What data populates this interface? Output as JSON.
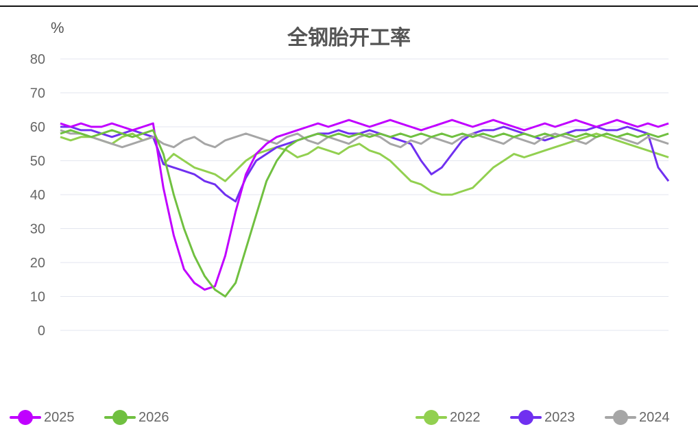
{
  "header": {
    "title": "全钢胎开工率",
    "unit": "%"
  },
  "chart_data": {
    "type": "line",
    "title": "全钢胎开工率",
    "ylabel": "%",
    "ylim": [
      0,
      80
    ],
    "y_ticks": [
      "0",
      "10",
      "20",
      "30",
      "40",
      "50",
      "60",
      "70",
      "80"
    ],
    "grid": true,
    "legend_position": "bottom",
    "x_points": 60,
    "series": [
      {
        "name": "2022",
        "color": "#92d050",
        "values": [
          57,
          56,
          57,
          57,
          56,
          55,
          57,
          58,
          56,
          57,
          49,
          52,
          50,
          48,
          47,
          46,
          44,
          47,
          50,
          52,
          53,
          54,
          53,
          51,
          52,
          54,
          53,
          52,
          54,
          55,
          53,
          52,
          50,
          47,
          44,
          43,
          41,
          40,
          40,
          41,
          42,
          45,
          48,
          50,
          52,
          51,
          52,
          53,
          54,
          55,
          56,
          57,
          58,
          57,
          56,
          55,
          54,
          53,
          52,
          51
        ]
      },
      {
        "name": "2023",
        "color": "#7030f0",
        "values": [
          60,
          60,
          59,
          59,
          58,
          57,
          58,
          59,
          58,
          57,
          49,
          48,
          47,
          46,
          44,
          43,
          40,
          38,
          45,
          50,
          52,
          54,
          55,
          56,
          57,
          58,
          58,
          59,
          58,
          58,
          59,
          58,
          57,
          56,
          55,
          50,
          46,
          48,
          52,
          56,
          58,
          59,
          59,
          60,
          59,
          58,
          57,
          56,
          57,
          58,
          59,
          59,
          60,
          59,
          59,
          60,
          59,
          58,
          48,
          44
        ]
      },
      {
        "name": "2024",
        "color": "#a6a6a6",
        "values": [
          59,
          58,
          58,
          57,
          56,
          55,
          54,
          55,
          56,
          57,
          55,
          54,
          56,
          57,
          55,
          54,
          56,
          57,
          58,
          57,
          56,
          55,
          57,
          58,
          56,
          55,
          57,
          56,
          55,
          57,
          58,
          57,
          55,
          54,
          56,
          55,
          57,
          56,
          55,
          57,
          58,
          57,
          56,
          55,
          57,
          56,
          55,
          57,
          58,
          57,
          56,
          55,
          57,
          58,
          57,
          56,
          55,
          57,
          56,
          55
        ]
      },
      {
        "name": "2025",
        "color": "#c000ff",
        "values": [
          61,
          60,
          61,
          60,
          60,
          61,
          60,
          59,
          60,
          61,
          42,
          28,
          18,
          14,
          12,
          13,
          22,
          35,
          46,
          52,
          55,
          57,
          58,
          59,
          60,
          61,
          60,
          61,
          62,
          61,
          60,
          61,
          62,
          61,
          60,
          59,
          60,
          61,
          62,
          61,
          60,
          61,
          62,
          61,
          60,
          59,
          60,
          61,
          60,
          61,
          62,
          61,
          60,
          61,
          62,
          61,
          60,
          61,
          60,
          61
        ]
      },
      {
        "name": "2026",
        "color": "#70c040",
        "values": [
          58,
          59,
          58,
          57,
          58,
          59,
          58,
          57,
          58,
          59,
          52,
          40,
          30,
          22,
          16,
          12,
          10,
          14,
          24,
          34,
          44,
          50,
          54,
          56,
          57,
          58,
          57,
          58,
          57,
          58,
          57,
          58,
          57,
          58,
          57,
          58,
          57,
          58,
          57,
          58,
          57,
          58,
          57,
          58,
          57,
          58,
          57,
          58,
          57,
          58,
          57,
          58,
          57,
          58,
          57,
          58,
          57,
          58,
          57,
          58
        ]
      }
    ]
  },
  "legend": [
    {
      "label": "2025",
      "color": "#c000ff"
    },
    {
      "label": "2026",
      "color": "#70c040"
    },
    {
      "label": "2022",
      "color": "#92d050"
    },
    {
      "label": "2023",
      "color": "#7030f0"
    },
    {
      "label": "2024",
      "color": "#a6a6a6"
    }
  ]
}
